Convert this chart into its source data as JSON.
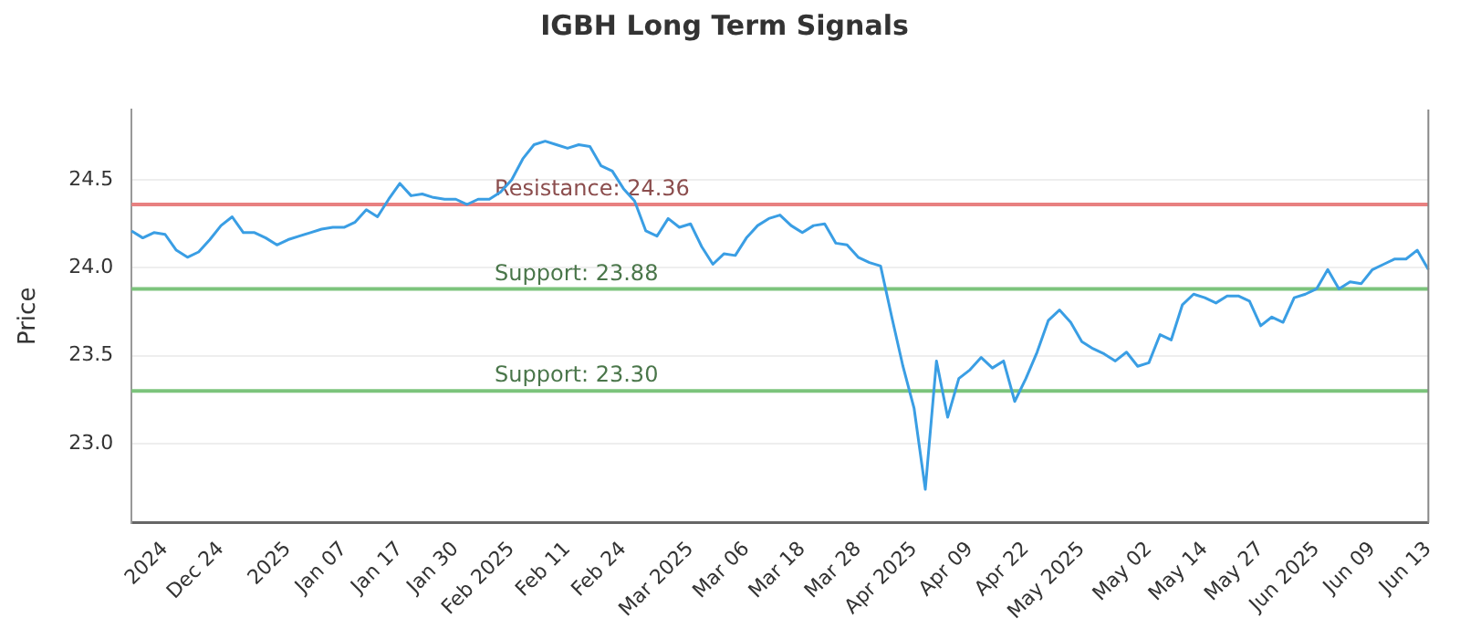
{
  "chart_data": {
    "type": "line",
    "title": "IGBH Long Term Signals",
    "ylabel": "Price",
    "categories": [
      null,
      null,
      null,
      "2024",
      null,
      null,
      null,
      null,
      "Dec 24",
      null,
      null,
      null,
      null,
      null,
      "2025",
      null,
      null,
      null,
      null,
      "Jan 07",
      null,
      null,
      null,
      null,
      "Jan 17",
      null,
      null,
      null,
      null,
      "Jan 30",
      null,
      null,
      null,
      null,
      "Feb 2025",
      null,
      null,
      null,
      null,
      "Feb 11",
      null,
      null,
      null,
      null,
      "Feb 24",
      null,
      null,
      null,
      null,
      null,
      "Mar 2025",
      null,
      null,
      null,
      null,
      "Mar 06",
      null,
      null,
      null,
      null,
      "Mar 18",
      null,
      null,
      null,
      null,
      "Mar 28",
      null,
      null,
      null,
      null,
      "Apr 2025",
      null,
      null,
      null,
      null,
      "Apr 09",
      null,
      null,
      null,
      null,
      "Apr 22",
      null,
      null,
      null,
      null,
      "May 2025",
      null,
      null,
      null,
      null,
      null,
      "May 02",
      null,
      null,
      null,
      null,
      "May 14",
      null,
      null,
      null,
      null,
      "May 27",
      null,
      null,
      null,
      null,
      "Jun 2025",
      null,
      null,
      null,
      null,
      "Jun 09",
      null,
      null,
      null,
      null,
      "Jun 13"
    ],
    "series": [
      {
        "color": "#3a9ee4",
        "values": [
          24.21,
          24.17,
          24.2,
          24.19,
          24.1,
          24.06,
          24.09,
          24.16,
          24.24,
          24.29,
          24.2,
          24.2,
          24.17,
          24.13,
          24.16,
          24.18,
          24.2,
          24.22,
          24.23,
          24.23,
          24.26,
          24.33,
          24.29,
          24.39,
          24.48,
          24.41,
          24.42,
          24.4,
          24.39,
          24.39,
          24.36,
          24.39,
          24.39,
          24.43,
          24.5,
          24.62,
          24.7,
          24.72,
          24.7,
          24.68,
          24.7,
          24.69,
          24.58,
          24.55,
          24.45,
          24.38,
          24.21,
          24.18,
          24.28,
          24.23,
          24.25,
          24.12,
          24.02,
          24.08,
          24.07,
          24.17,
          24.24,
          24.28,
          24.3,
          24.24,
          24.2,
          24.24,
          24.25,
          24.14,
          24.13,
          24.06,
          24.03,
          24.01,
          23.72,
          23.44,
          23.2,
          22.74,
          23.47,
          23.15,
          23.37,
          23.42,
          23.49,
          23.43,
          23.47,
          23.24,
          23.37,
          23.52,
          23.7,
          23.76,
          23.69,
          23.58,
          23.54,
          23.51,
          23.47,
          23.52,
          23.44,
          23.46,
          23.62,
          23.59,
          23.79,
          23.85,
          23.83,
          23.8,
          23.84,
          23.84,
          23.81,
          23.67,
          23.72,
          23.69,
          23.83,
          23.85,
          23.88,
          23.99,
          23.88,
          23.92,
          23.91,
          23.99,
          24.02,
          24.05,
          24.05,
          24.1,
          23.99
        ]
      }
    ],
    "ylim": [
      22.55,
      24.9
    ],
    "yticks": [
      {
        "value": 23,
        "label": "23.0"
      },
      23.5,
      {
        "value": 24,
        "label": "24.0"
      },
      24.5
    ],
    "grid": "y",
    "marker": "none",
    "line_style": "solid",
    "legend": false,
    "ref_lines": [
      {
        "axis": "y",
        "value": 24.36,
        "label": "Resistance: 24.36",
        "color": "#e88080"
      },
      {
        "axis": "y",
        "value": 23.88,
        "label": "Support: 23.88",
        "color": "#7cc47c"
      },
      {
        "axis": "y",
        "value": 23.3,
        "label": "Support: 23.30",
        "color": "#7cc47c"
      }
    ]
  }
}
